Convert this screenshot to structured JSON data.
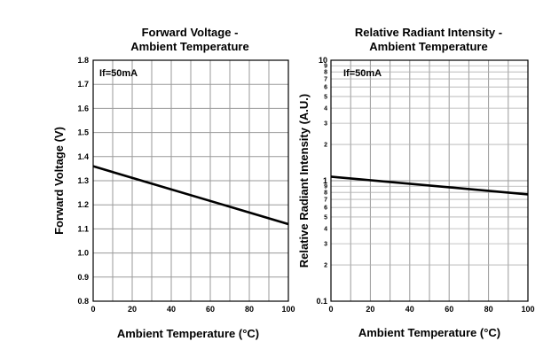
{
  "chart_data": [
    {
      "type": "line",
      "title_lines": [
        "Forward Voltage -",
        "Ambient Temperature"
      ],
      "xlabel": "Ambient Temperature (°C)",
      "ylabel": "Forward Voltage (V)",
      "xlim": [
        0,
        100
      ],
      "ylim": [
        0.8,
        1.8
      ],
      "x_ticks": [
        0,
        20,
        40,
        60,
        80,
        100
      ],
      "y_ticks": [
        0.8,
        0.9,
        1.0,
        1.1,
        1.2,
        1.3,
        1.4,
        1.5,
        1.6,
        1.7,
        1.8
      ],
      "y_tick_labels": [
        "0.8",
        "0.9",
        "1.0",
        "1.1",
        "1.2",
        "1.3",
        "1.4",
        "1.5",
        "1.6",
        "1.7",
        "1.8"
      ],
      "grid": true,
      "annotation": "If=50mA",
      "series": [
        {
          "x": [
            0,
            100
          ],
          "y": [
            1.36,
            1.12
          ]
        }
      ]
    },
    {
      "type": "line",
      "scale_y": "log",
      "title_lines": [
        "Relative Radiant Intensity -",
        "Ambient Temperature"
      ],
      "xlabel": "Ambient Temperature (°C)",
      "ylabel": "Relative Radiant Intensity (A.U.)",
      "xlim": [
        0,
        100
      ],
      "ylim": [
        0.1,
        10
      ],
      "x_ticks": [
        0,
        20,
        40,
        60,
        80,
        100
      ],
      "y_major_ticks": [
        0.1,
        1,
        10
      ],
      "y_major_labels": [
        "0.1",
        "1",
        "10"
      ],
      "y_minor_labels": [
        "2",
        "3",
        "4",
        "5",
        "6",
        "7",
        "8",
        "9"
      ],
      "grid": true,
      "annotation": "If=50mA",
      "series": [
        {
          "x": [
            0,
            100
          ],
          "y": [
            1.08,
            0.77
          ]
        }
      ]
    }
  ]
}
